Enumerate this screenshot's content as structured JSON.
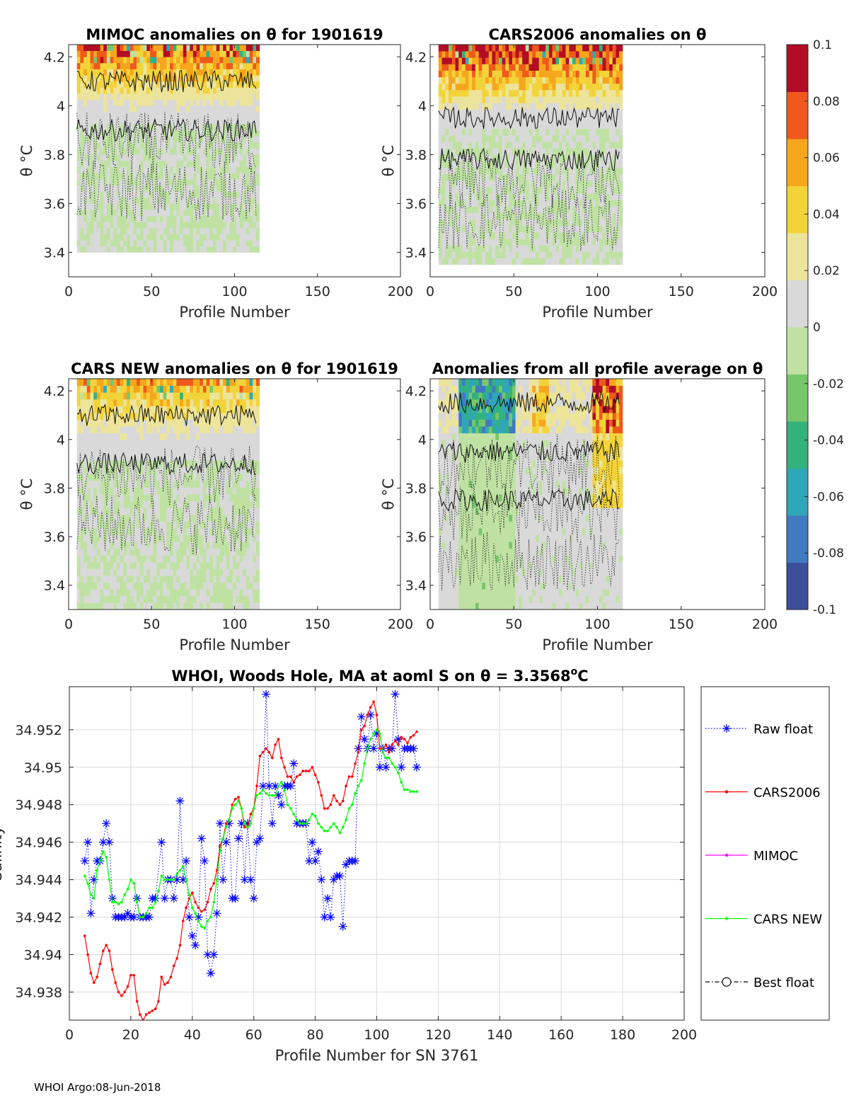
{
  "figure": {
    "footer": "WHOI Argo:08-Jun-2018"
  },
  "chart_data": [
    {
      "id": "mimoc",
      "type": "heatmap",
      "title": "MIMOC anomalies on θ  for 1901619",
      "xlabel": "Profile Number",
      "ylabel": "θ °C",
      "xlim": [
        0,
        200
      ],
      "ylim": [
        3.3,
        4.25
      ],
      "xticks": [
        "0",
        "50",
        "100",
        "150",
        "200"
      ],
      "yticks": [
        "3.4",
        "3.6",
        "3.8",
        "4",
        "4.2"
      ],
      "profiles": [
        5,
        113
      ],
      "theta_range": [
        3.4,
        4.25
      ],
      "surface_anomaly": 0.08,
      "deep_anomaly": 0.0
    },
    {
      "id": "cars2006",
      "type": "heatmap",
      "title": "CARS2006 anomalies on θ",
      "xlabel": "Profile Number",
      "ylabel": "θ °C",
      "xlim": [
        0,
        200
      ],
      "ylim": [
        3.3,
        4.25
      ],
      "xticks": [
        "0",
        "50",
        "100",
        "150",
        "200"
      ],
      "yticks": [
        "3.4",
        "3.6",
        "3.8",
        "4",
        "4.2"
      ],
      "profiles": [
        5,
        113
      ],
      "theta_range": [
        3.35,
        4.25
      ],
      "surface_anomaly": 0.1,
      "deep_anomaly": 0.0
    },
    {
      "id": "carsnew",
      "type": "heatmap",
      "title": "CARS NEW anomalies on θ for 1901619",
      "xlabel": "Profile Number",
      "ylabel": "θ °C",
      "xlim": [
        0,
        200
      ],
      "ylim": [
        3.3,
        4.25
      ],
      "xticks": [
        "0",
        "50",
        "100",
        "150",
        "200"
      ],
      "yticks": [
        "3.4",
        "3.6",
        "3.8",
        "4",
        "4.2"
      ],
      "profiles": [
        5,
        113
      ],
      "theta_range": [
        3.3,
        4.25
      ],
      "surface_anomaly": 0.06,
      "deep_anomaly": 0.0
    },
    {
      "id": "allavg",
      "type": "heatmap",
      "title": "Anomalies from all profile average on θ",
      "xlabel": "Profile Number",
      "ylabel": "θ °C",
      "xlim": [
        0,
        200
      ],
      "ylim": [
        3.3,
        4.25
      ],
      "xticks": [
        "0",
        "50",
        "100",
        "150",
        "200"
      ],
      "yticks": [
        "3.4",
        "3.6",
        "3.8",
        "4",
        "4.2"
      ],
      "profiles": [
        5,
        113
      ],
      "theta_range": [
        3.3,
        4.25
      ],
      "surface_anomaly": -0.03,
      "deep_anomaly": -0.01
    },
    {
      "id": "colorbar",
      "type": "colorbar",
      "range": [
        -0.1,
        0.1
      ],
      "ticks": [
        "0.1",
        "0.08",
        "0.06",
        "0.04",
        "0.02",
        "0",
        "-0.02",
        "-0.04",
        "-0.06",
        "-0.08",
        "-0.1"
      ],
      "colors": [
        "#3a4e9a",
        "#3f7ac2",
        "#2fa7b9",
        "#33b27c",
        "#77c66b",
        "#bfe2a3",
        "#d9d9d9",
        "#ede49b",
        "#f2d43a",
        "#f6a61d",
        "#ef5a1c",
        "#b30c25"
      ]
    },
    {
      "id": "salinity",
      "type": "line",
      "title": "WHOI, Woods Hole, MA at aoml S on θ = 3.3568°C",
      "title_main": "WHOI, Woods Hole, MA at aoml S on ",
      "title_theta": "θ = 3.3568",
      "title_sup": "o",
      "title_unit": "C",
      "xlabel": "Profile Number for SN 3761",
      "ylabel": "Salinity",
      "xlim": [
        0,
        200
      ],
      "ylim": [
        34.9365,
        34.9543
      ],
      "xticks": [
        "0",
        "20",
        "40",
        "60",
        "80",
        "100",
        "120",
        "140",
        "160",
        "180",
        "200"
      ],
      "yticks": [
        "34.938",
        "34.94",
        "34.942",
        "34.944",
        "34.946",
        "34.948",
        "34.95",
        "34.952"
      ],
      "legend": [
        "Raw float",
        "CARS2006",
        "MIMOC",
        "CARS NEW",
        "Best float"
      ],
      "series": [
        {
          "name": "Raw float",
          "color": "#0000ff",
          "x": [
            5,
            6,
            7,
            8,
            9,
            10,
            11,
            12,
            13,
            14,
            15,
            16,
            17,
            18,
            19,
            20,
            21,
            22,
            23,
            24,
            25,
            26,
            27,
            28,
            30,
            31,
            32,
            33,
            34,
            35,
            36,
            37,
            38,
            39,
            40,
            41,
            42,
            43,
            44,
            45,
            46,
            47,
            48,
            49,
            50,
            51,
            52,
            53,
            54,
            55,
            56,
            57,
            58,
            59,
            60,
            61,
            62,
            63,
            64,
            65,
            66,
            67,
            68,
            69,
            70,
            71,
            72,
            73,
            74,
            75,
            76,
            77,
            78,
            79,
            80,
            81,
            82,
            83,
            84,
            85,
            86,
            87,
            88,
            89,
            90,
            91,
            92,
            93,
            94,
            95,
            96,
            97,
            98,
            99,
            100,
            101,
            102,
            103,
            104,
            105,
            106,
            107,
            108,
            109,
            110,
            111,
            112,
            113
          ],
          "values": [
            34.945,
            34.946,
            34.9422,
            34.944,
            34.945,
            34.945,
            34.946,
            34.947,
            34.946,
            34.943,
            34.942,
            34.942,
            34.942,
            34.942,
            34.9422,
            34.942,
            34.942,
            34.943,
            34.942,
            34.942,
            34.942,
            34.942,
            34.943,
            34.943,
            34.946,
            34.943,
            34.944,
            34.944,
            34.943,
            34.944,
            34.9482,
            34.944,
            34.945,
            34.942,
            34.941,
            34.9405,
            34.942,
            34.9462,
            34.945,
            34.94,
            34.939,
            34.94,
            34.9422,
            34.947,
            34.944,
            34.946,
            34.947,
            34.943,
            34.943,
            34.9462,
            34.947,
            34.944,
            34.947,
            34.944,
            34.943,
            34.946,
            34.9462,
            34.949,
            34.9539,
            34.949,
            34.947,
            34.949,
            34.9485,
            34.948,
            34.949,
            34.949,
            34.949,
            34.9502,
            34.947,
            34.947,
            34.947,
            34.947,
            34.945,
            34.946,
            34.945,
            34.9455,
            34.944,
            34.942,
            34.943,
            34.942,
            34.944,
            34.9442,
            34.9442,
            34.9415,
            34.9448,
            34.945,
            34.945,
            34.945,
            34.951,
            34.9527,
            34.9515,
            34.951,
            34.9528,
            34.951,
            34.9518,
            34.95,
            34.951,
            34.95,
            34.951,
            34.951,
            34.9539,
            34.9515,
            34.95,
            34.951,
            34.951,
            34.951,
            34.951,
            34.95
          ]
        },
        {
          "name": "CARS2006",
          "color": "#ff0000",
          "x": [
            5,
            6,
            7,
            8,
            9,
            10,
            11,
            12,
            13,
            14,
            15,
            16,
            17,
            18,
            19,
            20,
            21,
            22,
            23,
            24,
            25,
            26,
            27,
            28,
            29,
            30,
            31,
            32,
            33,
            34,
            35,
            36,
            37,
            38,
            39,
            40,
            41,
            42,
            43,
            44,
            45,
            46,
            47,
            48,
            49,
            50,
            51,
            52,
            53,
            54,
            55,
            56,
            57,
            58,
            59,
            60,
            61,
            62,
            63,
            64,
            65,
            66,
            67,
            68,
            69,
            70,
            71,
            72,
            73,
            74,
            75,
            76,
            77,
            78,
            79,
            80,
            81,
            82,
            83,
            84,
            85,
            86,
            87,
            88,
            89,
            90,
            91,
            92,
            93,
            94,
            95,
            96,
            97,
            98,
            99,
            100,
            101,
            102,
            103,
            104,
            105,
            106,
            107,
            108,
            109,
            110,
            111,
            112,
            113
          ],
          "values": [
            34.941,
            34.94,
            34.939,
            34.9385,
            34.9388,
            34.9395,
            34.9402,
            34.9405,
            34.9402,
            34.9392,
            34.9385,
            34.938,
            34.9378,
            34.938,
            34.9383,
            34.9389,
            34.9389,
            34.9375,
            34.9368,
            34.9365,
            34.9368,
            34.9369,
            34.937,
            34.9371,
            34.9375,
            34.9388,
            34.9384,
            34.9385,
            34.9388,
            34.9394,
            34.9398,
            34.9405,
            34.9418,
            34.9425,
            34.943,
            34.9433,
            34.9428,
            34.9425,
            34.9423,
            34.9424,
            34.9428,
            34.9435,
            34.9438,
            34.9445,
            34.9458,
            34.9462,
            34.947,
            34.9472,
            34.948,
            34.9483,
            34.9484,
            34.9478,
            34.9468,
            34.9468,
            34.9475,
            34.9478,
            34.949,
            34.9506,
            34.9508,
            34.951,
            34.9508,
            34.9505,
            34.9512,
            34.9515,
            34.9505,
            34.95,
            34.9495,
            34.9495,
            34.9492,
            34.9495,
            34.9496,
            34.9498,
            34.9498,
            34.9498,
            34.95,
            34.9496,
            34.9492,
            34.9485,
            34.9478,
            34.9478,
            34.948,
            34.9485,
            34.9482,
            34.948,
            34.9482,
            34.949,
            34.9495,
            34.9495,
            34.9502,
            34.9508,
            34.952,
            34.9522,
            34.9528,
            34.9532,
            34.9535,
            34.9528,
            34.951,
            34.951,
            34.9512,
            34.9508,
            34.9512,
            34.9514,
            34.9512,
            34.9516,
            34.9515,
            34.9513,
            34.9516,
            34.9517,
            34.9519
          ]
        },
        {
          "name": "MIMOC",
          "color": "#ff00ff",
          "x": [],
          "values": []
        },
        {
          "name": "CARS NEW",
          "color": "#00ff00",
          "x": [
            5,
            6,
            7,
            8,
            9,
            10,
            11,
            12,
            13,
            14,
            15,
            16,
            17,
            18,
            19,
            20,
            21,
            22,
            23,
            24,
            25,
            26,
            27,
            28,
            29,
            30,
            31,
            32,
            33,
            34,
            35,
            36,
            37,
            38,
            39,
            40,
            41,
            42,
            43,
            44,
            45,
            46,
            47,
            48,
            49,
            50,
            51,
            52,
            53,
            54,
            55,
            56,
            57,
            58,
            59,
            60,
            61,
            62,
            63,
            64,
            65,
            66,
            67,
            68,
            69,
            70,
            71,
            72,
            73,
            74,
            75,
            76,
            77,
            78,
            79,
            80,
            81,
            82,
            83,
            84,
            85,
            86,
            87,
            88,
            89,
            90,
            91,
            92,
            93,
            94,
            95,
            96,
            97,
            98,
            99,
            100,
            101,
            102,
            103,
            104,
            105,
            106,
            107,
            108,
            109,
            110,
            111,
            112,
            113
          ],
          "values": [
            34.9442,
            34.9438,
            34.9432,
            34.943,
            34.9445,
            34.945,
            34.9455,
            34.9452,
            34.944,
            34.9428,
            34.9428,
            34.9427,
            34.9428,
            34.9432,
            34.9435,
            34.944,
            34.9438,
            34.9428,
            34.942,
            34.942,
            34.9422,
            34.9425,
            34.9425,
            34.9428,
            34.9434,
            34.9442,
            34.944,
            34.944,
            34.944,
            34.944,
            34.9443,
            34.9445,
            34.9447,
            34.944,
            34.9432,
            34.9425,
            34.9422,
            34.9418,
            34.9415,
            34.9414,
            34.9418,
            34.942,
            34.9428,
            34.944,
            34.9455,
            34.9462,
            34.9468,
            34.9472,
            34.9478,
            34.948,
            34.9482,
            34.9478,
            34.947,
            34.9468,
            34.947,
            34.9478,
            34.9485,
            34.9486,
            34.9488,
            34.9486,
            34.9485,
            34.9485,
            34.9485,
            34.949,
            34.9492,
            34.9488,
            34.948,
            34.9478,
            34.9475,
            34.9472,
            34.947,
            34.947,
            34.947,
            34.9472,
            34.9475,
            34.9474,
            34.947,
            34.9468,
            34.9466,
            34.9466,
            34.9468,
            34.947,
            34.9468,
            34.9465,
            34.9468,
            34.9472,
            34.9478,
            34.948,
            34.9486,
            34.949,
            34.9493,
            34.9502,
            34.951,
            34.9515,
            34.9518,
            34.952,
            34.9518,
            34.9508,
            34.9505,
            34.9505,
            34.9502,
            34.95,
            34.9497,
            34.9492,
            34.9488,
            34.9488,
            34.9487,
            34.9487,
            34.9487
          ]
        },
        {
          "name": "Best float",
          "color": "#000000",
          "x": [],
          "values": []
        }
      ]
    }
  ]
}
